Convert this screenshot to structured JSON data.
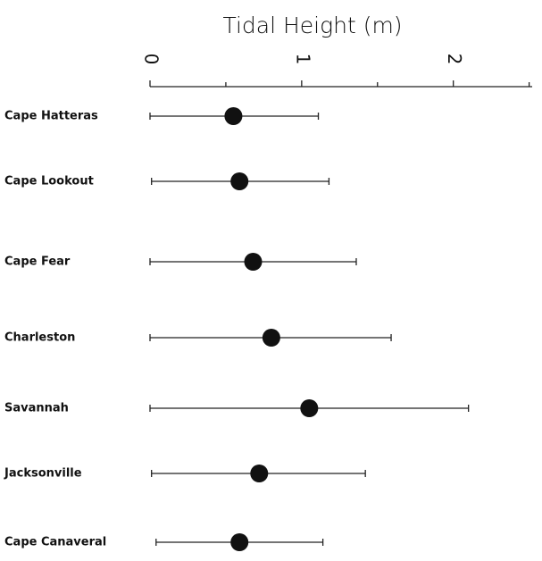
{
  "chart_data": {
    "type": "dot-range",
    "title": "Tidal Height (m)",
    "categories": [
      "Cape Hatteras",
      "Cape Lookout",
      "Cape Fear",
      "Charleston",
      "Savannah",
      "Jacksonville",
      "Cape Canaveral"
    ],
    "low": [
      0,
      0.01,
      0,
      0,
      0,
      0.01,
      0.04
    ],
    "values": [
      0.55,
      0.59,
      0.68,
      0.8,
      1.05,
      0.72,
      0.59
    ],
    "high": [
      1.11,
      1.18,
      1.36,
      1.59,
      2.1,
      1.42,
      1.14
    ],
    "color": "#111111",
    "xlim": [
      0,
      2.52
    ],
    "xticks": [
      0,
      1,
      2
    ],
    "xminorticks": [
      0.5,
      1.5,
      2.5
    ]
  }
}
